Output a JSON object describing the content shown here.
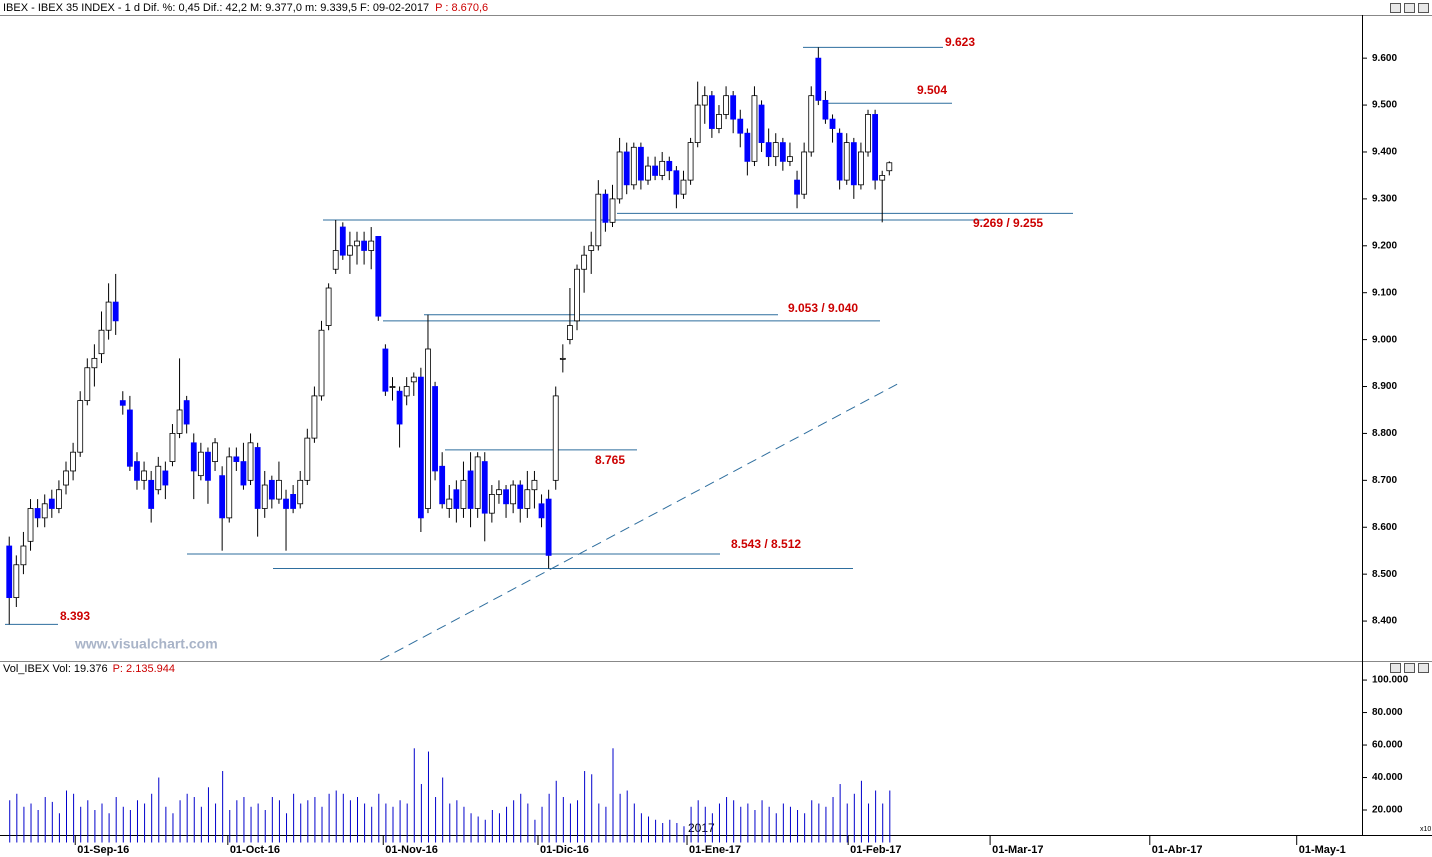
{
  "chart_data": {
    "type": "candlestick",
    "title": "IBEX - IBEX 35 INDEX - 1 d  Dif. %: 0,45  Dif.: 42,2  M: 9.377,0  m: 9.339,5  F: 09-02-2017",
    "subtitle": "P : 8.670,6",
    "watermark": "www.visualchart.com",
    "year_label": "2017",
    "up_color": "#ffffff",
    "down_color": "#0000ff",
    "ylim": [
      8317,
      9692
    ],
    "yticks": [
      {
        "value": 8400,
        "label": "8.400"
      },
      {
        "value": 8500,
        "label": "8.500"
      },
      {
        "value": 8600,
        "label": "8.600"
      },
      {
        "value": 8700,
        "label": "8.700"
      },
      {
        "value": 8800,
        "label": "8.800"
      },
      {
        "value": 8900,
        "label": "8.900"
      },
      {
        "value": 9000,
        "label": "9.000"
      },
      {
        "value": 9100,
        "label": "9.100"
      },
      {
        "value": 9200,
        "label": "9.200"
      },
      {
        "value": 9300,
        "label": "9.300"
      },
      {
        "value": 9400,
        "label": "9.400"
      },
      {
        "value": 9500,
        "label": "9.500"
      },
      {
        "value": 9600,
        "label": "9.600"
      }
    ],
    "xlim": [
      -1.3,
      190.6
    ],
    "xticks": [
      {
        "value": 9.3,
        "label": "01-Sep-16"
      },
      {
        "value": 30.8,
        "label": "01-Oct-16"
      },
      {
        "value": 52.7,
        "label": "01-Nov-16"
      },
      {
        "value": 74.5,
        "label": "01-Dic-16"
      },
      {
        "value": 95.5,
        "label": "01-Ene-17"
      },
      {
        "value": 118.2,
        "label": "01-Feb-17"
      },
      {
        "value": 138.2,
        "label": "01-Mar-17"
      },
      {
        "value": 160.7,
        "label": "01-Abr-17"
      },
      {
        "value": 181.4,
        "label": "01-May-1"
      }
    ],
    "ohlc": [
      [
        8560,
        8580,
        8393,
        8450
      ],
      [
        8450,
        8540,
        8430,
        8520
      ],
      [
        8520,
        8590,
        8500,
        8560
      ],
      [
        8570,
        8660,
        8550,
        8640
      ],
      [
        8640,
        8660,
        8600,
        8620
      ],
      [
        8620,
        8670,
        8600,
        8650
      ],
      [
        8660,
        8680,
        8620,
        8640
      ],
      [
        8640,
        8700,
        8630,
        8680
      ],
      [
        8690,
        8740,
        8670,
        8720
      ],
      [
        8720,
        8780,
        8700,
        8760
      ],
      [
        8760,
        8890,
        8750,
        8870
      ],
      [
        8870,
        8960,
        8860,
        8940
      ],
      [
        8940,
        8990,
        8900,
        8960
      ],
      [
        8970,
        9060,
        8950,
        9020
      ],
      [
        9020,
        9120,
        9000,
        9080
      ],
      [
        9080,
        9140,
        9010,
        9040
      ],
      [
        8870,
        8890,
        8840,
        8860
      ],
      [
        8850,
        8880,
        8720,
        8730
      ],
      [
        8740,
        8760,
        8680,
        8700
      ],
      [
        8700,
        8740,
        8680,
        8720
      ],
      [
        8700,
        8720,
        8610,
        8640
      ],
      [
        8680,
        8750,
        8670,
        8730
      ],
      [
        8720,
        8740,
        8660,
        8690
      ],
      [
        8740,
        8820,
        8730,
        8800
      ],
      [
        8800,
        8960,
        8790,
        8850
      ],
      [
        8870,
        8880,
        8800,
        8820
      ],
      [
        8780,
        8800,
        8660,
        8720
      ],
      [
        8710,
        8780,
        8700,
        8760
      ],
      [
        8760,
        8770,
        8650,
        8700
      ],
      [
        8740,
        8790,
        8720,
        8780
      ],
      [
        8710,
        8730,
        8550,
        8620
      ],
      [
        8620,
        8770,
        8610,
        8750
      ],
      [
        8750,
        8770,
        8720,
        8740
      ],
      [
        8740,
        8780,
        8680,
        8690
      ],
      [
        8700,
        8800,
        8690,
        8780
      ],
      [
        8770,
        8780,
        8580,
        8640
      ],
      [
        8640,
        8720,
        8620,
        8690
      ],
      [
        8700,
        8710,
        8640,
        8660
      ],
      [
        8660,
        8740,
        8650,
        8700
      ],
      [
        8660,
        8680,
        8550,
        8640
      ],
      [
        8670,
        8690,
        8630,
        8640
      ],
      [
        8650,
        8720,
        8640,
        8700
      ],
      [
        8700,
        8810,
        8690,
        8790
      ],
      [
        8790,
        8900,
        8780,
        8880
      ],
      [
        8880,
        9040,
        8870,
        9020
      ],
      [
        9030,
        9120,
        9020,
        9110
      ],
      [
        9150,
        9255,
        9140,
        9190
      ],
      [
        9240,
        9250,
        9170,
        9180
      ],
      [
        9180,
        9230,
        9140,
        9200
      ],
      [
        9200,
        9230,
        9160,
        9210
      ],
      [
        9210,
        9230,
        9160,
        9190
      ],
      [
        9190,
        9240,
        9150,
        9210
      ],
      [
        9220,
        9220,
        9040,
        9050
      ],
      [
        8980,
        8990,
        8880,
        8890
      ],
      [
        8900,
        8920,
        8870,
        8900
      ],
      [
        8890,
        8900,
        8770,
        8820
      ],
      [
        8880,
        8920,
        8860,
        8900
      ],
      [
        8910,
        8930,
        8880,
        8920
      ],
      [
        8920,
        8940,
        8590,
        8620
      ],
      [
        8640,
        9053,
        8630,
        8980
      ],
      [
        8900,
        8910,
        8700,
        8720
      ],
      [
        8730,
        8760,
        8640,
        8650
      ],
      [
        8640,
        8690,
        8620,
        8660
      ],
      [
        8680,
        8700,
        8610,
        8640
      ],
      [
        8640,
        8740,
        8620,
        8700
      ],
      [
        8720,
        8760,
        8600,
        8640
      ],
      [
        8640,
        8760,
        8620,
        8750
      ],
      [
        8740,
        8760,
        8570,
        8630
      ],
      [
        8630,
        8690,
        8610,
        8670
      ],
      [
        8670,
        8700,
        8650,
        8680
      ],
      [
        8680,
        8690,
        8620,
        8650
      ],
      [
        8650,
        8700,
        8630,
        8690
      ],
      [
        8690,
        8700,
        8610,
        8640
      ],
      [
        8640,
        8720,
        8620,
        8680
      ],
      [
        8680,
        8720,
        8640,
        8700
      ],
      [
        8650,
        8670,
        8600,
        8620
      ],
      [
        8660,
        8680,
        8512,
        8540
      ],
      [
        8700,
        8900,
        8680,
        8880
      ],
      [
        8960,
        8990,
        8930,
        8960
      ],
      [
        9000,
        9110,
        8990,
        9030
      ],
      [
        9040,
        9160,
        9020,
        9150
      ],
      [
        9150,
        9200,
        9100,
        9180
      ],
      [
        9190,
        9230,
        9140,
        9200
      ],
      [
        9200,
        9340,
        9190,
        9310
      ],
      [
        9310,
        9320,
        9230,
        9250
      ],
      [
        9250,
        9330,
        9240,
        9300
      ],
      [
        9300,
        9430,
        9290,
        9400
      ],
      [
        9400,
        9420,
        9310,
        9330
      ],
      [
        9330,
        9420,
        9320,
        9410
      ],
      [
        9410,
        9420,
        9320,
        9340
      ],
      [
        9340,
        9390,
        9330,
        9370
      ],
      [
        9370,
        9390,
        9340,
        9350
      ],
      [
        9350,
        9400,
        9340,
        9380
      ],
      [
        9380,
        9390,
        9340,
        9360
      ],
      [
        9360,
        9370,
        9280,
        9310
      ],
      [
        9310,
        9360,
        9300,
        9340
      ],
      [
        9340,
        9430,
        9330,
        9420
      ],
      [
        9420,
        9550,
        9410,
        9500
      ],
      [
        9500,
        9540,
        9460,
        9520
      ],
      [
        9520,
        9530,
        9430,
        9450
      ],
      [
        9450,
        9500,
        9440,
        9480
      ],
      [
        9480,
        9540,
        9470,
        9520
      ],
      [
        9520,
        9530,
        9440,
        9470
      ],
      [
        9470,
        9490,
        9410,
        9440
      ],
      [
        9440,
        9450,
        9350,
        9380
      ],
      [
        9380,
        9540,
        9370,
        9520
      ],
      [
        9500,
        9510,
        9400,
        9420
      ],
      [
        9420,
        9450,
        9370,
        9390
      ],
      [
        9390,
        9440,
        9370,
        9420
      ],
      [
        9420,
        9430,
        9360,
        9380
      ],
      [
        9380,
        9420,
        9370,
        9390
      ],
      [
        9340,
        9360,
        9280,
        9310
      ],
      [
        9310,
        9420,
        9300,
        9400
      ],
      [
        9400,
        9540,
        9390,
        9520
      ],
      [
        9600,
        9623,
        9500,
        9510
      ],
      [
        9510,
        9530,
        9460,
        9470
      ],
      [
        9470,
        9480,
        9420,
        9450
      ],
      [
        9440,
        9450,
        9320,
        9340
      ],
      [
        9340,
        9440,
        9330,
        9420
      ],
      [
        9420,
        9430,
        9300,
        9330
      ],
      [
        9330,
        9420,
        9320,
        9400
      ],
      [
        9400,
        9490,
        9390,
        9480
      ],
      [
        9480,
        9490,
        9320,
        9340
      ],
      [
        9340,
        9360,
        9250,
        9350
      ],
      [
        9360,
        9380,
        9350,
        9377
      ]
    ],
    "annotations": [
      {
        "label": "9.623",
        "values": [
          9623
        ]
      },
      {
        "label": "9.504",
        "values": [
          9504
        ]
      },
      {
        "label": "9.269 / 9.255",
        "values": [
          9269,
          9255
        ]
      },
      {
        "label": "9.053 / 9.040",
        "values": [
          9053,
          9040
        ]
      },
      {
        "label": "8.765",
        "values": [
          8765
        ]
      },
      {
        "label": "8.543 / 8.512",
        "values": [
          8543,
          8512
        ]
      },
      {
        "label": "8.393",
        "values": [
          8393
        ]
      }
    ],
    "trendline": {
      "x": [
        52.3,
        125.1
      ],
      "y": [
        8317,
        8905
      ]
    },
    "volume": {
      "title": "Vol_IBEX Vol: 19.376",
      "subtitle": "P: 2.135.944",
      "scale_label": "x10",
      "color": "#0000cc",
      "ylim": [
        0,
        102500
      ],
      "yticks": [
        {
          "value": 20000,
          "label": "20.000"
        },
        {
          "value": 40000,
          "label": "40.000"
        },
        {
          "value": 60000,
          "label": "60.000"
        },
        {
          "value": 80000,
          "label": "80.000"
        },
        {
          "value": 100000,
          "label": "100.000"
        }
      ],
      "values": [
        26000,
        30000,
        22000,
        24000,
        20000,
        28000,
        25000,
        18000,
        32000,
        30000,
        22000,
        26000,
        20000,
        24000,
        18000,
        28000,
        22000,
        20000,
        26000,
        24000,
        30000,
        40000,
        22000,
        18000,
        26000,
        30000,
        28000,
        22000,
        34000,
        24000,
        44000,
        20000,
        26000,
        28000,
        22000,
        24000,
        20000,
        28000,
        26000,
        18000,
        30000,
        24000,
        26000,
        28000,
        22000,
        30000,
        32000,
        30000,
        26000,
        28000,
        24000,
        22000,
        30000,
        24000,
        22000,
        26000,
        24000,
        58000,
        36000,
        56000,
        28000,
        40000,
        24000,
        26000,
        22000,
        18000,
        16000,
        14000,
        20000,
        18000,
        22000,
        26000,
        30000,
        24000,
        14000,
        22000,
        30000,
        38000,
        28000,
        24000,
        26000,
        44000,
        42000,
        24000,
        22000,
        58000,
        30000,
        32000,
        24000,
        18000,
        16000,
        14000,
        12000,
        14000,
        12000,
        10000,
        22000,
        26000,
        22000,
        18000,
        24000,
        28000,
        26000,
        22000,
        24000,
        20000,
        26000,
        22000,
        18000,
        24000,
        22000,
        20000,
        18000,
        26000,
        24000,
        22000,
        28000,
        36000,
        24000,
        30000,
        38000,
        24000,
        32000,
        24000,
        32000
      ]
    }
  }
}
